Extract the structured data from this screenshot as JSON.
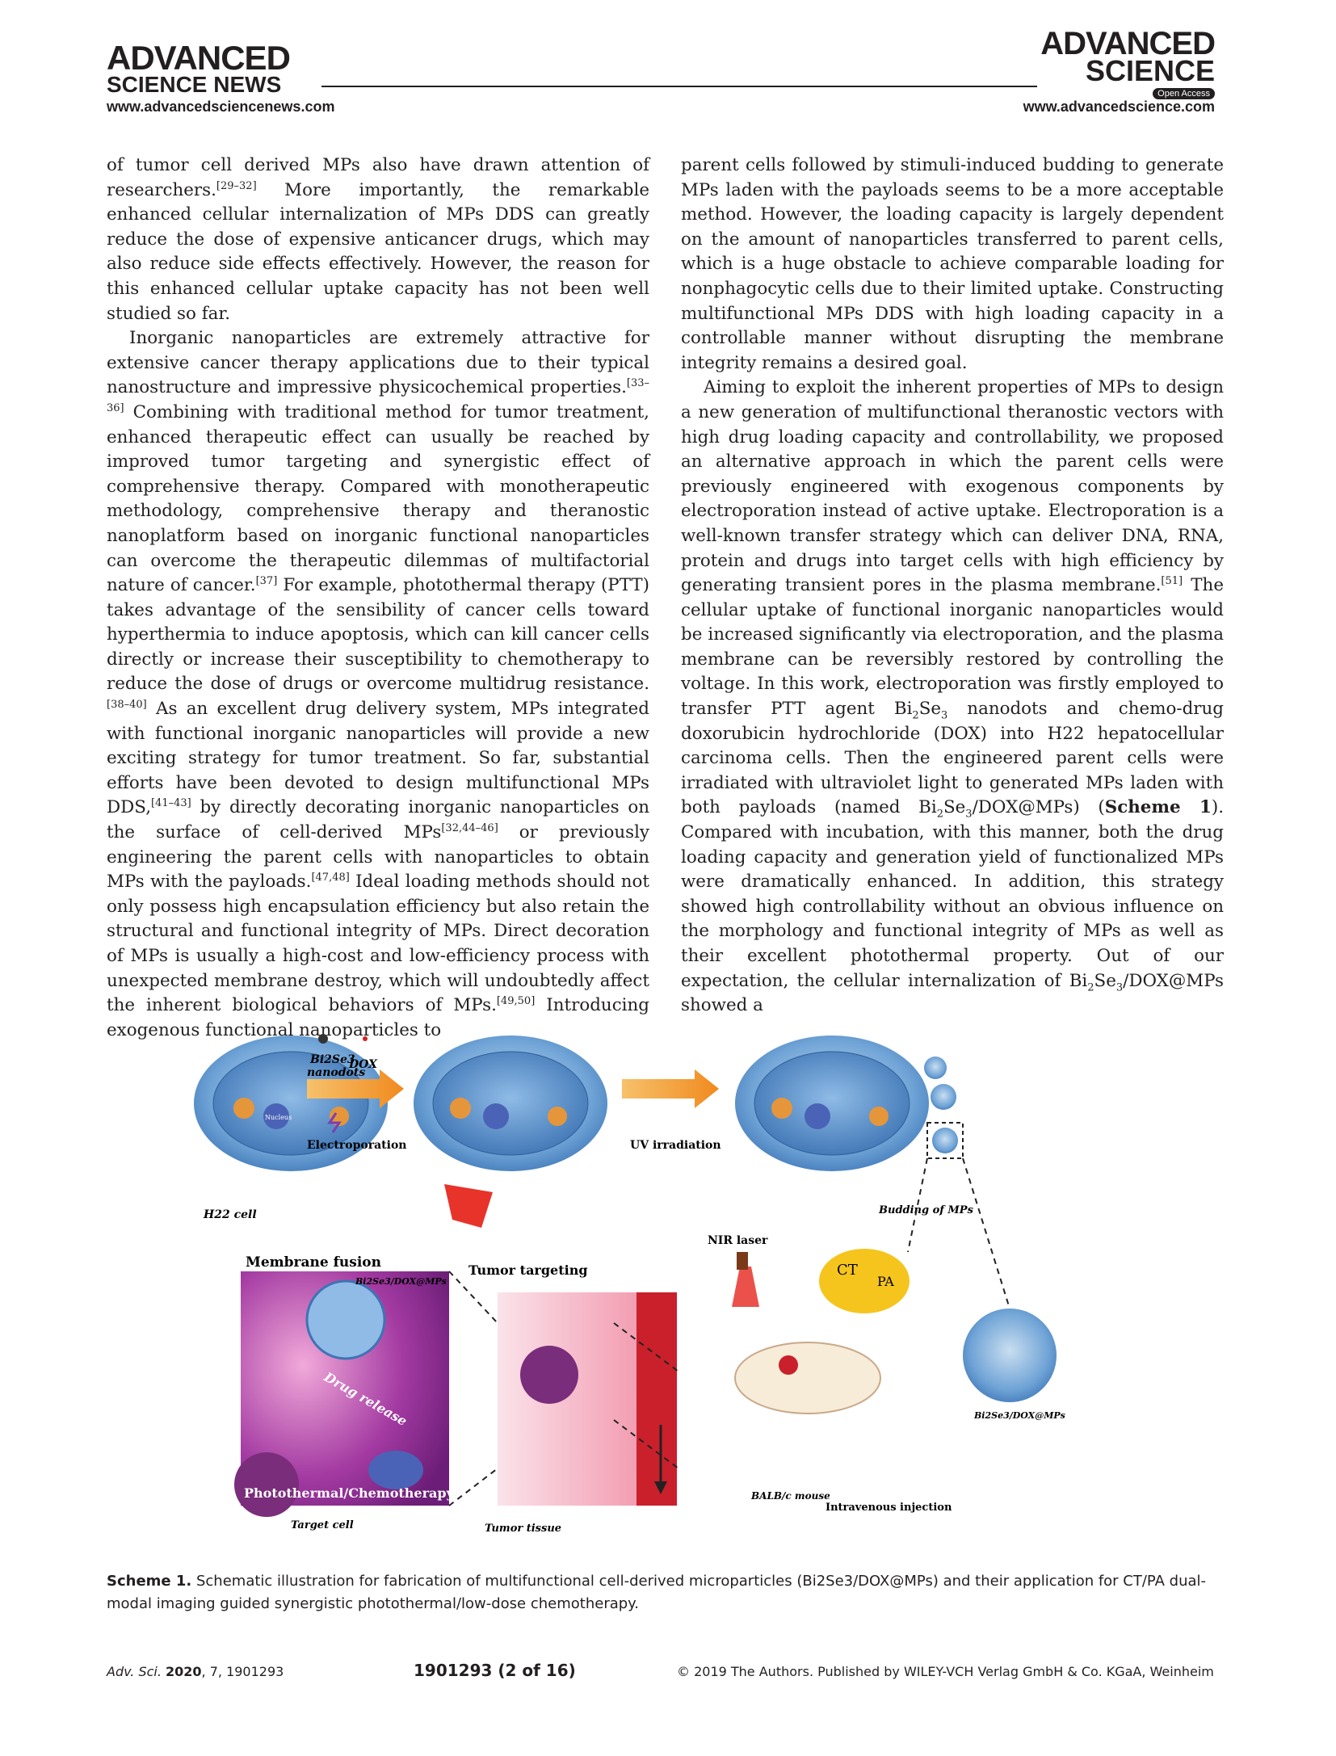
{
  "header": {
    "left_brand_line1": "ADVANCED",
    "left_brand_line2": "SCIENCE NEWS",
    "left_url": "www.advancedsciencenews.com",
    "right_brand_line1": "ADVANCED",
    "right_brand_line2": "SCIENCE",
    "right_badge": "Open Access",
    "right_url": "www.advancedscience.com"
  },
  "left_column": [
    {
      "indent": false,
      "segments": [
        {
          "t": "of tumor cell derived MPs also have drawn attention of researchers."
        },
        {
          "t": "[29–32]",
          "sup": true
        },
        {
          "t": " More importantly, the remarkable enhanced cellular internalization of MPs DDS can greatly reduce the dose of expensive anticancer drugs, which may also reduce side effects effectively. However, the reason for this enhanced cellular uptake capacity has not been well studied so far."
        }
      ]
    },
    {
      "indent": true,
      "segments": [
        {
          "t": "Inorganic nanoparticles are extremely attractive for extensive cancer therapy applications due to their typical nanostructure and impressive physicochemical properties."
        },
        {
          "t": "[33–36]",
          "sup": true
        },
        {
          "t": " Combining with traditional method for tumor treatment, enhanced therapeutic effect can usually be reached by improved tumor targeting and synergistic effect of comprehensive therapy. Compared with monotherapeutic methodology, comprehensive therapy and theranostic nanoplatform based on inorganic functional nanoparticles can overcome the therapeutic dilemmas of multifactorial nature of cancer."
        },
        {
          "t": "[37]",
          "sup": true
        },
        {
          "t": " For example, photothermal therapy (PTT) takes advantage of the sensibility of cancer cells toward hyperthermia to induce apoptosis, which can kill cancer cells directly or increase their susceptibility to chemotherapy to reduce the dose of drugs or overcome multidrug resistance."
        },
        {
          "t": "[38–40]",
          "sup": true
        },
        {
          "t": " As an excellent drug delivery system, MPs integrated with functional inorganic nanoparticles will provide a new exciting strategy for tumor treatment. So far, substantial efforts have been devoted to design multifunctional MPs DDS,"
        },
        {
          "t": "[41–43]",
          "sup": true
        },
        {
          "t": " by directly decorating inorganic nanoparticles on the surface of cell-derived MPs"
        },
        {
          "t": "[32,44–46]",
          "sup": true
        },
        {
          "t": " or previously engineering the parent cells with nanoparticles to obtain MPs with the payloads."
        },
        {
          "t": "[47,48]",
          "sup": true
        },
        {
          "t": " Ideal loading methods should not only possess high encapsulation efficiency but also retain the structural and functional integrity of MPs. Direct decoration of MPs is usually a high-cost and low-efficiency process with unexpected membrane destroy, which will undoubtedly affect the inherent biological behaviors of MPs."
        },
        {
          "t": "[49,50]",
          "sup": true
        },
        {
          "t": " Introducing exogenous functional nanoparticles to"
        }
      ]
    }
  ],
  "right_column": [
    {
      "indent": false,
      "segments": [
        {
          "t": "parent cells followed by stimuli-induced budding to generate MPs laden with the payloads seems to be a more acceptable method. However, the loading capacity is largely dependent on the amount of nanoparticles transferred to parent cells, which is a huge obstacle to achieve comparable loading for nonphagocytic cells due to their limited uptake. Constructing multifunctional MPs DDS with high loading capacity in a controllable manner without disrupting the membrane integrity remains a desired goal."
        }
      ]
    },
    {
      "indent": true,
      "segments": [
        {
          "t": "Aiming to exploit the inherent properties of MPs to design a new generation of multifunctional theranostic vectors with high drug loading capacity and controllability, we proposed an alternative approach in which the parent cells were previously engineered with exogenous components by electroporation instead of active uptake. Electroporation is a well-known transfer strategy which can deliver DNA, RNA, protein and drugs into target cells with high efficiency by generating transient pores in the plasma membrane."
        },
        {
          "t": "[51]",
          "sup": true
        },
        {
          "t": " The cellular uptake of functional inorganic nanoparticles would be increased significantly via electroporation, and the plasma membrane can be reversibly restored by controlling the voltage. In this work, electroporation was firstly employed to transfer PTT agent Bi"
        },
        {
          "t": "2",
          "sub": true
        },
        {
          "t": "Se"
        },
        {
          "t": "3",
          "sub": true
        },
        {
          "t": " nanodots and chemo-drug doxorubicin hydrochloride (DOX) into H22 hepatocellular carcinoma cells. Then the engineered parent cells were irradiated with ultraviolet light to generated MPs laden with both payloads (named Bi"
        },
        {
          "t": "2",
          "sub": true
        },
        {
          "t": "Se"
        },
        {
          "t": "3",
          "sub": true
        },
        {
          "t": "/DOX@MPs) ("
        },
        {
          "t": "Scheme 1",
          "bold": true
        },
        {
          "t": "). Compared with incubation, with this manner, both the drug loading capacity and generation yield of functionalized MPs were dramatically enhanced. In addition, this strategy showed high controllability without an obvious influence on the morphology and functional integrity of MPs as well as their excellent photothermal property. Out of our expectation, the cellular internalization of Bi"
        },
        {
          "t": "2",
          "sub": true
        },
        {
          "t": "Se"
        },
        {
          "t": "3",
          "sub": true
        },
        {
          "t": "/DOX@MPs showed a"
        }
      ]
    }
  ],
  "figure": {
    "bi2se3_label": "Bi2Se3",
    "nanodots_label": "nanodots",
    "dox_label": "DOX",
    "nucleus_label": "Nucleus",
    "electroporation_label": "Electroporation",
    "uv_label": "UV irradiation",
    "h22_label": "H22 cell",
    "budding_label": "Budding of MPs",
    "membrane_fusion_label": "Membrane fusion",
    "mps_label_fusion": "Bi2Se3/DOX@MPs",
    "tumor_targeting_label": "Tumor targeting",
    "nir_label": "NIR laser",
    "ct_label": "CT",
    "pa_label": "PA",
    "drug_release_label": "Drug release",
    "pt_chemo_label": "Photothermal/Chemotherapy",
    "mps_label_right": "Bi2Se3/DOX@MPs",
    "mouse_label": "BALB/c mouse",
    "injection_label": "Intravenous injection",
    "target_cell_label": "Target cell",
    "tumor_tissue_label": "Tumor tissue"
  },
  "caption": {
    "label": "Scheme 1.",
    "text": "Schematic illustration for fabrication of multifunctional cell-derived microparticles (Bi2Se3/DOX@MPs) and their application for CT/PA dual-modal imaging guided synergistic photothermal/low-dose chemotherapy."
  },
  "footer": {
    "journal": "Adv. Sci.",
    "year": "2020",
    "volume_issue": ", 7, 1901293",
    "page": "1901293  (2 of 16)",
    "copyright": "© 2019 The Authors. Published by WILEY-VCH Verlag GmbH & Co. KGaA, Weinheim"
  }
}
